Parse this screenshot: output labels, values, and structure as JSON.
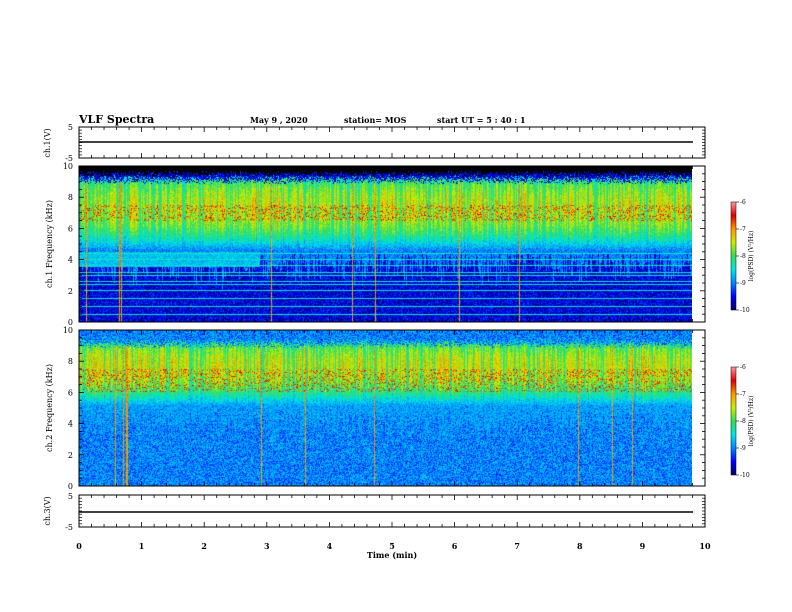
{
  "header": {
    "title": "VLF Spectra",
    "date": "May 9 , 2020",
    "station": "station= MOS",
    "start": "start UT = 5 : 40 : 1"
  },
  "colors": {
    "colormap": [
      "#000066",
      "#0000ff",
      "#0088ff",
      "#00e5e5",
      "#33dd55",
      "#ccee00",
      "#ff9900",
      "#dd0000",
      "#ff9999",
      "#ffffff"
    ],
    "trace": "#000000",
    "saturated": "#000000"
  },
  "chart_data": [
    {
      "type": "line",
      "panel": "ch1-waveform",
      "ylabel": "ch.1(V)",
      "ylim": [
        -5,
        5
      ],
      "yticks": [
        "5",
        "-5"
      ],
      "series": [
        {
          "x": [
            0,
            9.8
          ],
          "y": [
            0,
            0
          ]
        }
      ]
    },
    {
      "type": "heatmap",
      "panel": "ch1-spectrogram",
      "ylabel": "ch.1 Frequency (kHz)",
      "ylim": [
        0,
        10
      ],
      "yticks": [
        "0",
        "2",
        "4",
        "6",
        "8",
        "10"
      ],
      "xlim": [
        0,
        9.8
      ],
      "colorbar": {
        "label": "log(PSD) (V²/Hz)",
        "range": [
          -10,
          -6
        ],
        "ticks": [
          "-6",
          "-7",
          "-8",
          "-9",
          "-10"
        ]
      },
      "features": {
        "saturated_above_khz": 9.5,
        "emission_band_khz": [
          4.5,
          9
        ],
        "peak_band_khz": [
          6.5,
          7.5
        ],
        "horizontal_lines_khz": [
          0.5,
          1.0,
          1.5,
          2.0,
          2.4,
          2.6,
          3.0,
          3.2,
          3.6,
          4.0,
          4.4
        ],
        "lower_band_khz": [
          3.5,
          4.5
        ],
        "lower_band_end_min": 2.9
      }
    },
    {
      "type": "heatmap",
      "panel": "ch2-spectrogram",
      "ylabel": "ch.2 Frequency (kHz)",
      "ylim": [
        0,
        10
      ],
      "yticks": [
        "0",
        "2",
        "4",
        "6",
        "8",
        "10"
      ],
      "xlim": [
        0,
        9.8
      ],
      "colorbar": {
        "label": "log(PSD) (V²/Hz)",
        "range": [
          -10,
          -6
        ],
        "ticks": [
          "-6",
          "-7",
          "-8",
          "-9",
          "-10"
        ]
      },
      "features": {
        "emission_band_khz": [
          5,
          9
        ],
        "peak_band_khz": [
          6,
          7.5
        ],
        "background_level": -9
      }
    },
    {
      "type": "line",
      "panel": "ch3-waveform",
      "ylabel": "ch.3(V)",
      "ylim": [
        -5,
        5
      ],
      "yticks": [
        "5",
        "-5"
      ],
      "series": [
        {
          "x": [
            0,
            9.8
          ],
          "y": [
            0,
            0
          ]
        }
      ]
    }
  ],
  "xaxis": {
    "label": "Time (min)",
    "range": [
      0,
      10
    ],
    "ticks": [
      "0",
      "1",
      "2",
      "3",
      "4",
      "5",
      "6",
      "7",
      "8",
      "9",
      "10"
    ]
  }
}
